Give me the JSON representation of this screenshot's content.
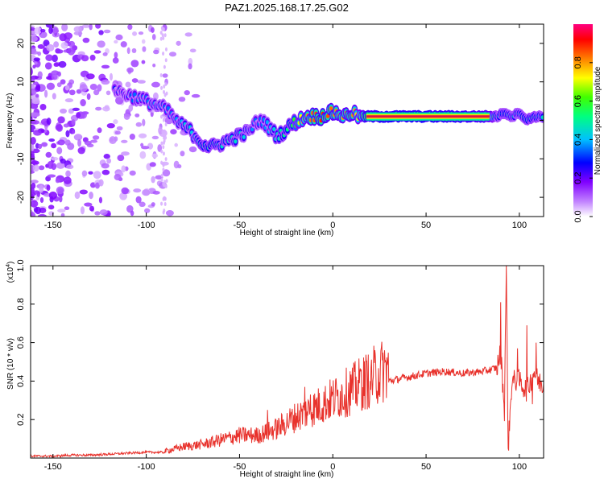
{
  "figure_title": "PAZ1.2025.168.17.25.G02",
  "colors": {
    "snr_line": "#e8322c",
    "spectral_ridge": "#e01040",
    "axis": "#000000"
  },
  "chart_data": [
    {
      "type": "heatmap",
      "name": "spectrogram",
      "xlabel": "Height of straight line (km)",
      "ylabel": "Frequency (Hz)",
      "xlim": [
        -162,
        113
      ],
      "ylim": [
        -25,
        25
      ],
      "x_ticks": [
        -150,
        -100,
        -50,
        0,
        50,
        100
      ],
      "x_tick_labels": [
        "-150",
        "-100",
        "-50",
        "0",
        "50",
        "100"
      ],
      "y_ticks": [
        -20,
        -10,
        0,
        10,
        20
      ],
      "y_tick_labels": [
        "-20",
        "-10",
        "0",
        "10",
        "20"
      ],
      "colorbar": {
        "label": "Normalized spectral amplitude",
        "range": [
          0,
          1
        ],
        "ticks": [
          0.0,
          0.2,
          0.4,
          0.6,
          0.8
        ],
        "tick_labels": [
          "0.0",
          "0.2",
          "0.4",
          "0.6",
          "0.8"
        ],
        "colormap": "rainbow (white-violet-blue-cyan-green-yellow-orange-red-magenta)"
      },
      "ridge": {
        "x": [
          -117,
          -112,
          -106,
          -100,
          -95,
          -90,
          -86,
          -82,
          -78,
          -74,
          -70,
          -65,
          -60,
          -55,
          -50,
          -45,
          -42,
          -38,
          -34,
          -30,
          -26,
          -22,
          -18,
          -14,
          -10,
          -6,
          -2,
          2,
          6,
          10,
          14,
          18,
          30,
          50,
          70,
          84,
          88,
          92,
          96,
          100,
          104,
          108,
          113
        ],
        "freq": [
          8,
          7,
          6,
          5,
          4,
          3,
          1,
          -1,
          -2,
          -4,
          -6,
          -7,
          -6,
          -5,
          -4,
          -3,
          -1,
          0,
          -2,
          -4,
          -3,
          -1,
          0,
          1,
          1,
          1,
          2,
          2,
          1,
          2,
          1,
          1,
          1,
          1,
          1,
          1,
          1,
          2,
          1,
          2,
          0,
          1,
          1
        ],
        "amp": [
          0.3,
          0.3,
          0.35,
          0.35,
          0.4,
          0.35,
          0.35,
          0.4,
          0.45,
          0.4,
          0.5,
          0.5,
          0.45,
          0.45,
          0.45,
          0.4,
          0.35,
          0.35,
          0.4,
          0.45,
          0.5,
          0.55,
          0.7,
          0.8,
          0.85,
          0.9,
          0.85,
          0.8,
          0.8,
          0.85,
          0.7,
          0.95,
          1.0,
          1.0,
          0.95,
          0.85,
          0.45,
          0.5,
          0.45,
          0.45,
          0.5,
          0.5,
          0.45
        ]
      }
    },
    {
      "type": "line",
      "name": "snr",
      "xlabel": "Height of straight line (km)",
      "ylabel": "SNR (10 * v/v)",
      "scale_label": "(x10",
      "scale_exponent": "4",
      "scale_label_close": ")",
      "xlim": [
        -162,
        113
      ],
      "ylim": [
        0,
        1.0
      ],
      "x_ticks": [
        -150,
        -100,
        -50,
        0,
        50,
        100
      ],
      "x_tick_labels": [
        "-150",
        "-100",
        "-50",
        "0",
        "50",
        "100"
      ],
      "y_ticks": [
        0.2,
        0.4,
        0.6,
        0.8,
        1.0
      ],
      "y_tick_labels": [
        "0.2",
        "0.4",
        "0.6",
        "0.8",
        "1.0"
      ],
      "series": [
        {
          "x": [
            -162,
            -150,
            -140,
            -130,
            -120,
            -110,
            -100,
            -90,
            -80,
            -70,
            -60,
            -50,
            -40,
            -30,
            -20,
            -10,
            0,
            10,
            20,
            30,
            40,
            50,
            60,
            70,
            80,
            85,
            88,
            90,
            92,
            93,
            94,
            96,
            100,
            104,
            108,
            110,
            113
          ],
          "values": [
            0.01,
            0.01,
            0.015,
            0.015,
            0.02,
            0.025,
            0.03,
            0.03,
            0.05,
            0.06,
            0.08,
            0.1,
            0.1,
            0.13,
            0.18,
            0.22,
            0.26,
            0.3,
            0.35,
            0.4,
            0.42,
            0.44,
            0.45,
            0.44,
            0.45,
            0.46,
            0.47,
            0.55,
            0.25,
            1.0,
            0.05,
            0.4,
            0.4,
            0.35,
            0.45,
            0.4,
            0.38
          ],
          "spikes": [
            [
              -35,
              0.25
            ],
            [
              -15,
              0.37
            ],
            [
              -12,
              0.33
            ],
            [
              5,
              0.37
            ],
            [
              15,
              0.45
            ],
            [
              20,
              0.4
            ],
            [
              90,
              0.81
            ],
            [
              93,
              1.0
            ],
            [
              94,
              0.05
            ],
            [
              99,
              0.57
            ],
            [
              104,
              0.69
            ],
            [
              107,
              0.28
            ],
            [
              109,
              0.6
            ]
          ]
        }
      ]
    }
  ]
}
